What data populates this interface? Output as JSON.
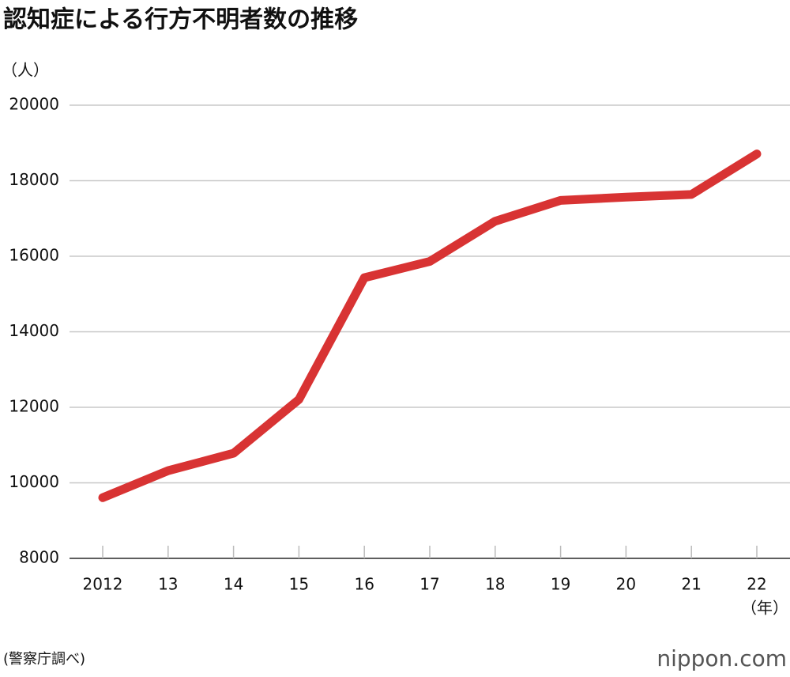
{
  "chart_data": {
    "type": "line",
    "title": "認知症による行方不明者数の推移",
    "y_unit": "（人）",
    "x_unit": "（年）",
    "categories": [
      "2012",
      "13",
      "14",
      "15",
      "16",
      "17",
      "18",
      "19",
      "20",
      "21",
      "22"
    ],
    "values": [
      9607,
      10322,
      10783,
      12208,
      15432,
      15863,
      16927,
      17479,
      17565,
      17636,
      18709
    ],
    "color": "#d83333",
    "ylim": [
      8000,
      20000
    ],
    "yticks": [
      8000,
      10000,
      12000,
      14000,
      16000,
      18000,
      20000
    ],
    "grid": true,
    "source": "(警察庁調べ)",
    "logo": "nippon.com"
  }
}
